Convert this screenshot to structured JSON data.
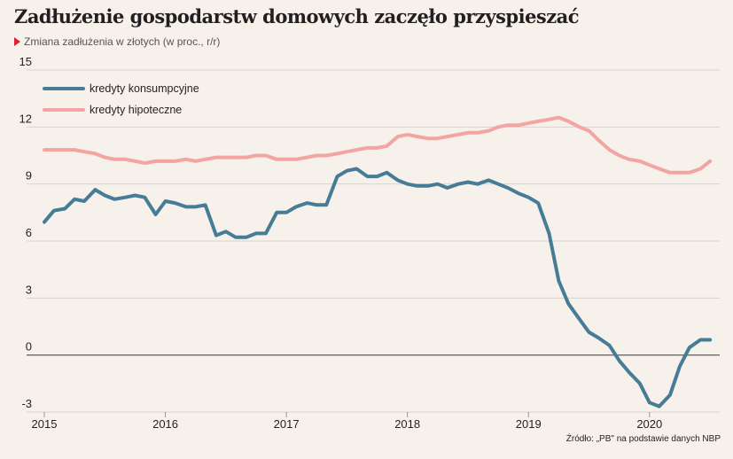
{
  "header": {
    "title": "Zadłużenie gospodarstw domowych zaczęło przyspieszać",
    "subtitle": "Zmiana zadłużenia w złotych (w proc., r/r)"
  },
  "footer": {
    "source": "Źródło: „PB\" na podstawie danych NBP"
  },
  "colors": {
    "background": "#f6f1ea",
    "consumer": "#467c96",
    "mortgage": "#f2a5a3",
    "grid": "#d9d4cd",
    "zero_line": "#6e6a66",
    "subtitle_marker": "#d9232e"
  },
  "chart_data": {
    "type": "line",
    "title": "Zadłużenie gospodarstw domowych zaczęło przyspieszać",
    "subtitle": "Zmiana zadłużenia w złotych (w proc., r/r)",
    "xlabel": "",
    "ylabel": "",
    "x_tick_labels": [
      "2015",
      "2016",
      "2017",
      "2018",
      "2019",
      "2020"
    ],
    "x_tick_values": [
      2015,
      2016,
      2017,
      2018,
      2019,
      2020
    ],
    "xlim": [
      2015.0,
      2020.58
    ],
    "y_ticks": [
      -3,
      0,
      3,
      6,
      9,
      12,
      15
    ],
    "y_tick_labels": [
      "-3",
      "0",
      "3",
      "6",
      "9",
      "12",
      "15"
    ],
    "ylim": [
      -3,
      15
    ],
    "grid": true,
    "legend_position": "top-left",
    "series": [
      {
        "name": "kredyty konsumpcyjne",
        "color": "#467c96",
        "x": [
          2015.0,
          2015.08,
          2015.17,
          2015.25,
          2015.33,
          2015.42,
          2015.5,
          2015.58,
          2015.67,
          2015.75,
          2015.83,
          2015.92,
          2016.0,
          2016.08,
          2016.17,
          2016.25,
          2016.33,
          2016.42,
          2016.5,
          2016.58,
          2016.67,
          2016.75,
          2016.83,
          2016.92,
          2017.0,
          2017.08,
          2017.17,
          2017.25,
          2017.33,
          2017.42,
          2017.5,
          2017.58,
          2017.67,
          2017.75,
          2017.83,
          2017.92,
          2018.0,
          2018.08,
          2018.17,
          2018.25,
          2018.33,
          2018.42,
          2018.5,
          2018.58,
          2018.67,
          2018.75,
          2018.83,
          2018.92,
          2019.0,
          2019.08,
          2019.17,
          2019.25,
          2019.33,
          2019.42,
          2019.5,
          2019.58,
          2019.67,
          2019.75,
          2019.83,
          2019.92,
          2020.0,
          2020.08,
          2020.17,
          2020.25,
          2020.33,
          2020.42,
          2020.5
        ],
        "values": [
          7.0,
          7.6,
          7.7,
          8.2,
          8.1,
          8.7,
          8.4,
          8.2,
          8.3,
          8.4,
          8.3,
          7.4,
          8.1,
          8.0,
          7.8,
          7.8,
          7.9,
          6.3,
          6.5,
          6.2,
          6.2,
          6.4,
          6.4,
          7.5,
          7.5,
          7.8,
          8.0,
          7.9,
          7.9,
          9.4,
          9.7,
          9.8,
          9.4,
          9.4,
          9.6,
          9.2,
          9.0,
          8.9,
          8.9,
          9.0,
          8.8,
          9.0,
          9.1,
          9.0,
          9.2,
          9.0,
          8.8,
          8.5,
          8.3,
          8.0,
          6.4,
          3.9,
          2.7,
          1.9,
          1.2,
          0.9,
          0.5,
          -0.3,
          -0.9,
          -1.5,
          -2.5,
          -2.7,
          -2.1,
          -0.6,
          0.4,
          0.8,
          0.8
        ]
      },
      {
        "name": "kredyty hipoteczne",
        "color": "#f2a5a3",
        "x": [
          2015.0,
          2015.08,
          2015.17,
          2015.25,
          2015.33,
          2015.42,
          2015.5,
          2015.58,
          2015.67,
          2015.75,
          2015.83,
          2015.92,
          2016.0,
          2016.08,
          2016.17,
          2016.25,
          2016.33,
          2016.42,
          2016.5,
          2016.58,
          2016.67,
          2016.75,
          2016.83,
          2016.92,
          2017.0,
          2017.08,
          2017.17,
          2017.25,
          2017.33,
          2017.42,
          2017.5,
          2017.58,
          2017.67,
          2017.75,
          2017.83,
          2017.92,
          2018.0,
          2018.08,
          2018.17,
          2018.25,
          2018.33,
          2018.42,
          2018.5,
          2018.58,
          2018.67,
          2018.75,
          2018.83,
          2018.92,
          2019.0,
          2019.08,
          2019.17,
          2019.25,
          2019.33,
          2019.42,
          2019.5,
          2019.58,
          2019.67,
          2019.75,
          2019.83,
          2019.92,
          2020.0,
          2020.08,
          2020.17,
          2020.25,
          2020.33,
          2020.42,
          2020.5
        ],
        "values": [
          10.8,
          10.8,
          10.8,
          10.8,
          10.7,
          10.6,
          10.4,
          10.3,
          10.3,
          10.2,
          10.1,
          10.2,
          10.2,
          10.2,
          10.3,
          10.2,
          10.3,
          10.4,
          10.4,
          10.4,
          10.4,
          10.5,
          10.5,
          10.3,
          10.3,
          10.3,
          10.4,
          10.5,
          10.5,
          10.6,
          10.7,
          10.8,
          10.9,
          10.9,
          11.0,
          11.5,
          11.6,
          11.5,
          11.4,
          11.4,
          11.5,
          11.6,
          11.7,
          11.7,
          11.8,
          12.0,
          12.1,
          12.1,
          12.2,
          12.3,
          12.4,
          12.5,
          12.3,
          12.0,
          11.8,
          11.3,
          10.8,
          10.5,
          10.3,
          10.2,
          10.0,
          9.8,
          9.6,
          9.6,
          9.6,
          9.8,
          10.2
        ]
      }
    ]
  }
}
